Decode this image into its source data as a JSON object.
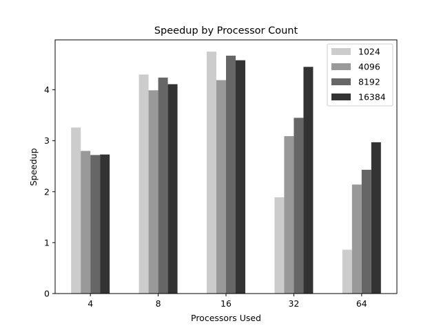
{
  "chart_data": {
    "type": "bar",
    "title": "Speedup by Processor Count",
    "xlabel": "Processors Used",
    "ylabel": "Speedup",
    "categories": [
      "4",
      "8",
      "16",
      "32",
      "64"
    ],
    "ylim": [
      0,
      4.98
    ],
    "yticks": [
      0,
      1,
      2,
      3,
      4
    ],
    "grid": false,
    "legend_position": "top-right",
    "series": [
      {
        "name": "1024",
        "color": "#cccccc",
        "values": [
          3.26,
          4.3,
          4.75,
          1.89,
          0.86
        ]
      },
      {
        "name": "4096",
        "color": "#999999",
        "values": [
          2.8,
          3.99,
          4.19,
          3.09,
          2.14
        ]
      },
      {
        "name": "8192",
        "color": "#666666",
        "values": [
          2.72,
          4.24,
          4.67,
          3.45,
          2.43
        ]
      },
      {
        "name": "16384",
        "color": "#333333",
        "values": [
          2.73,
          4.11,
          4.58,
          4.45,
          2.97
        ]
      }
    ]
  }
}
